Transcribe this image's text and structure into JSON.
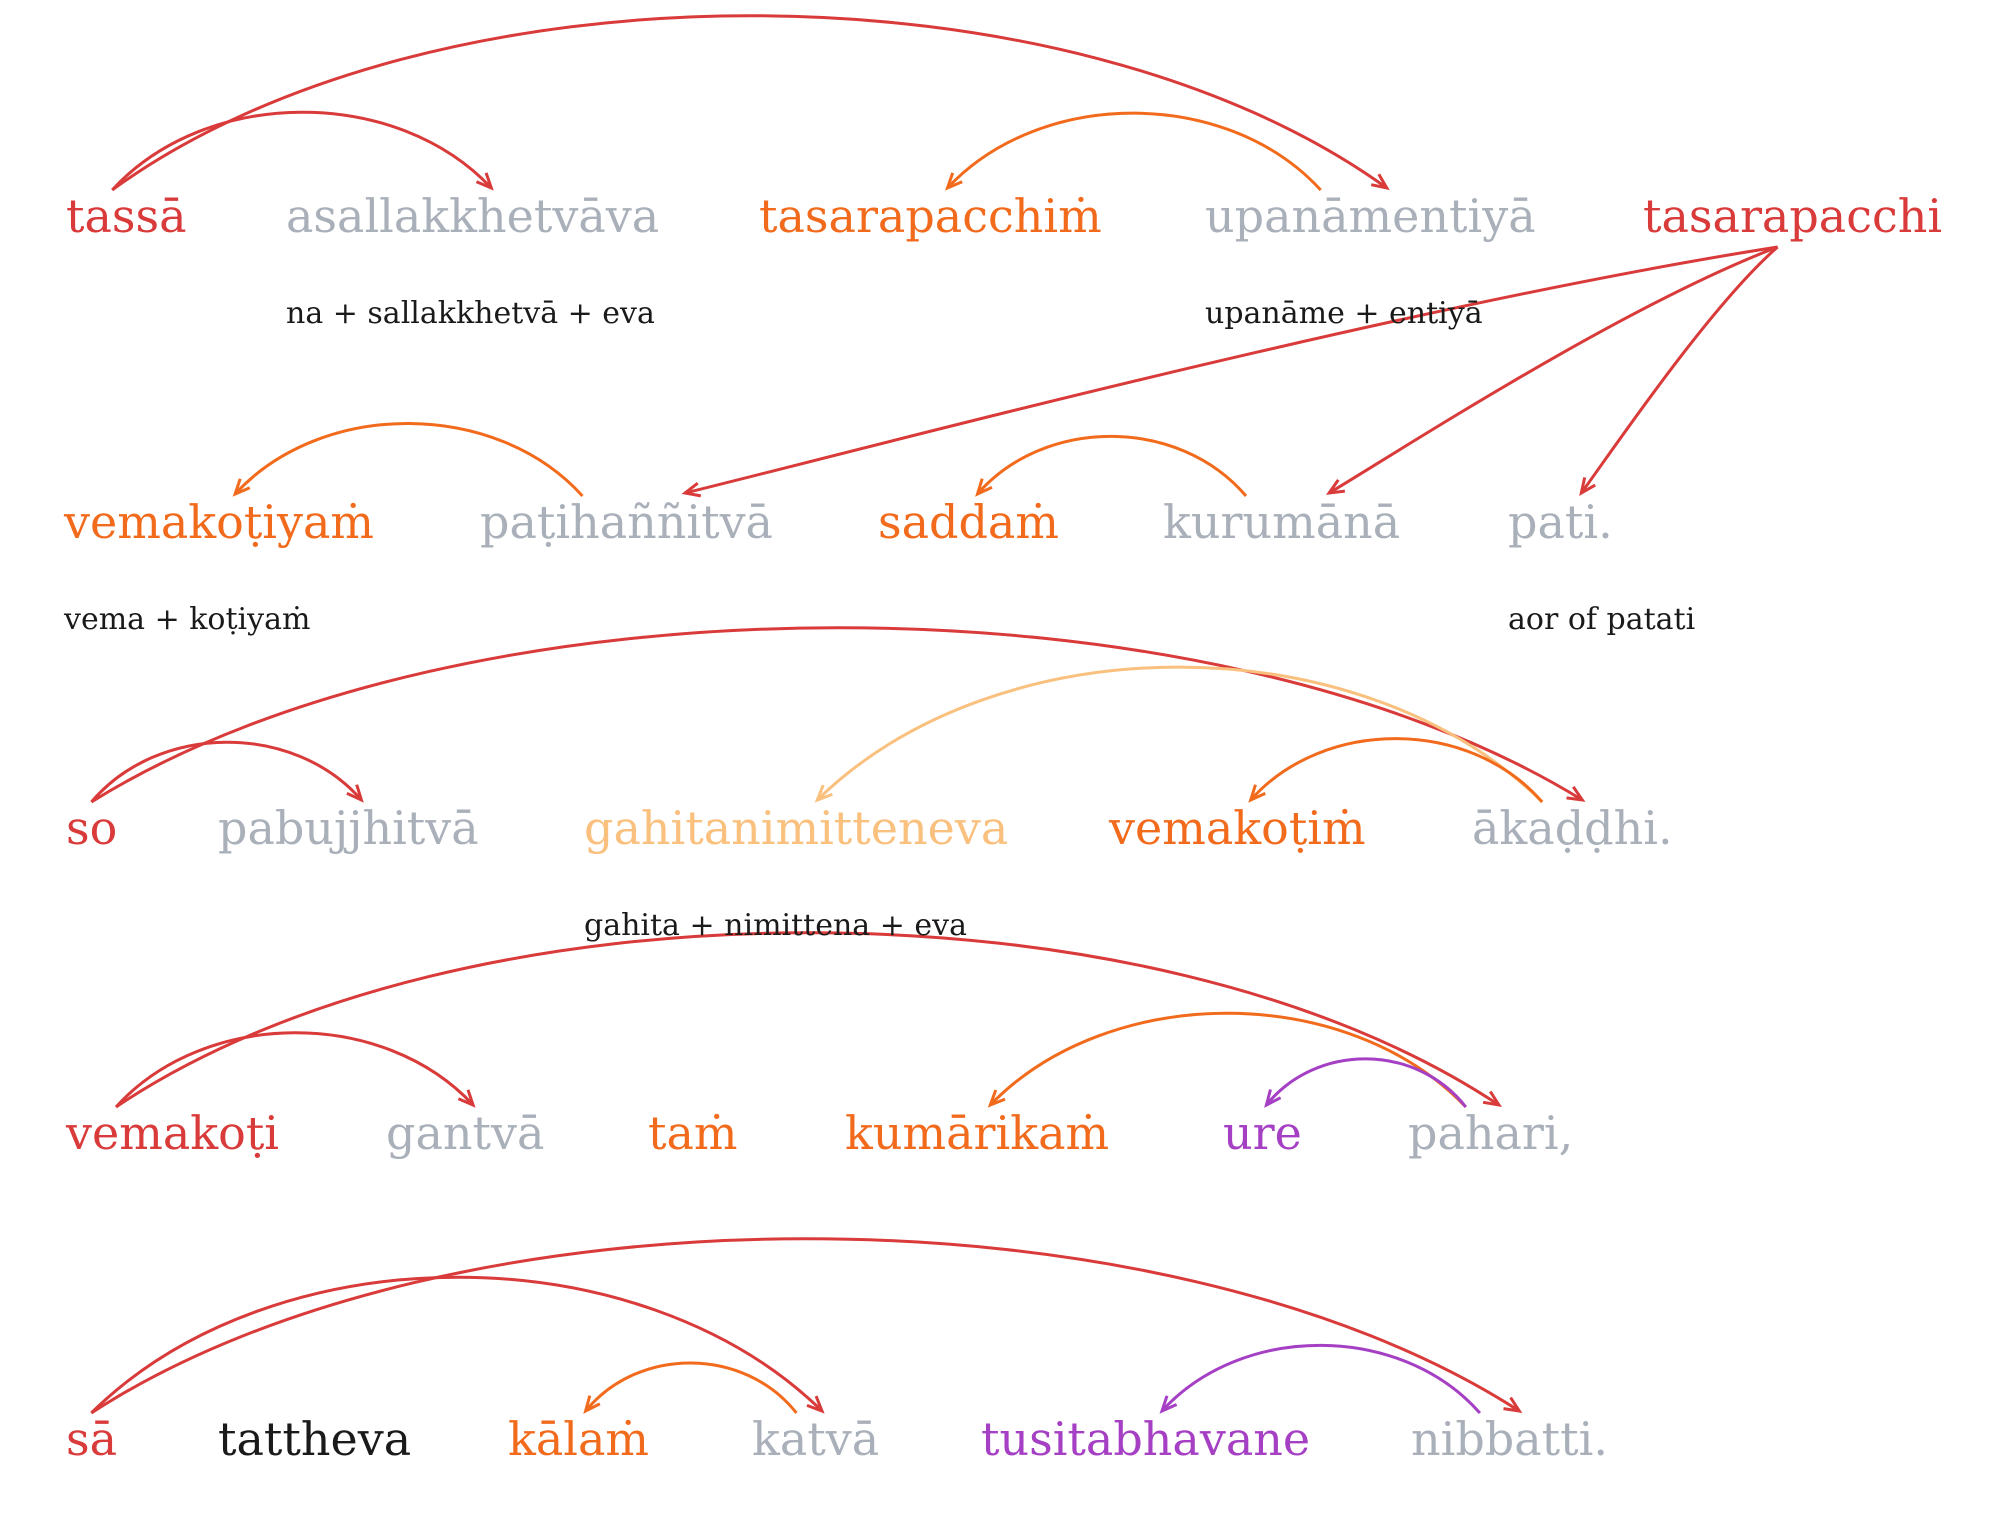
{
  "colors": {
    "red": "#d93a3a",
    "orange": "#f26b1d",
    "lightorange": "#f9c07e",
    "gray": "#a9b0b9",
    "purple": "#a540c4",
    "black": "#1a1a1a"
  },
  "lines": [
    {
      "words": [
        {
          "text": "tassā",
          "color": "red"
        },
        {
          "text": "asallakkhetvāva",
          "color": "gray",
          "gloss": "na + sallakkhetvā + eva"
        },
        {
          "text": "tasarapacchiṁ",
          "color": "orange"
        },
        {
          "text": "upanāmentiyā",
          "color": "gray",
          "gloss": "upanāme + entiyā"
        },
        {
          "text": "tasarapacchi",
          "color": "red"
        }
      ]
    },
    {
      "words": [
        {
          "text": "vemakoṭiyaṁ",
          "color": "orange",
          "gloss": "vema + koṭiyaṁ"
        },
        {
          "text": "paṭihaññitvā",
          "color": "gray"
        },
        {
          "text": "saddaṁ",
          "color": "orange"
        },
        {
          "text": "kurumānā",
          "color": "gray"
        },
        {
          "text": "pati.",
          "color": "gray",
          "gloss": "aor of patati"
        }
      ]
    },
    {
      "words": [
        {
          "text": "so",
          "color": "red"
        },
        {
          "text": "pabujjhitvā",
          "color": "gray"
        },
        {
          "text": "gahitanimitteneva",
          "color": "lightorange",
          "gloss": "gahita + nimittena + eva"
        },
        {
          "text": "vemakoṭiṁ",
          "color": "orange"
        },
        {
          "text": "ākaḍḍhi.",
          "color": "gray"
        }
      ]
    },
    {
      "words": [
        {
          "text": "vemakoṭi",
          "color": "red"
        },
        {
          "text": "gantvā",
          "color": "gray"
        },
        {
          "text": "taṁ",
          "color": "orange"
        },
        {
          "text": "kumārikaṁ",
          "color": "orange"
        },
        {
          "text": "ure",
          "color": "purple"
        },
        {
          "text": "pahari,",
          "color": "gray"
        }
      ]
    },
    {
      "words": [
        {
          "text": "sā",
          "color": "red"
        },
        {
          "text": "tattheva",
          "color": "black"
        },
        {
          "text": "kālaṁ",
          "color": "orange"
        },
        {
          "text": "katvā",
          "color": "gray"
        },
        {
          "text": "tusitabhavane",
          "color": "purple"
        },
        {
          "text": "nibbatti.",
          "color": "gray"
        }
      ]
    }
  ],
  "arcs": [
    {
      "from": [
        0,
        0
      ],
      "to": [
        0,
        1
      ],
      "color": "red"
    },
    {
      "from": [
        0,
        0
      ],
      "to": [
        0,
        3
      ],
      "color": "red"
    },
    {
      "from": [
        0,
        3
      ],
      "to": [
        0,
        2
      ],
      "color": "orange"
    },
    {
      "from": [
        0,
        4
      ],
      "to": [
        1,
        1
      ],
      "color": "red"
    },
    {
      "from": [
        0,
        4
      ],
      "to": [
        1,
        3
      ],
      "color": "red"
    },
    {
      "from": [
        0,
        4
      ],
      "to": [
        1,
        4
      ],
      "color": "red"
    },
    {
      "from": [
        1,
        1
      ],
      "to": [
        1,
        0
      ],
      "color": "orange"
    },
    {
      "from": [
        1,
        3
      ],
      "to": [
        1,
        2
      ],
      "color": "orange"
    },
    {
      "from": [
        2,
        0
      ],
      "to": [
        2,
        1
      ],
      "color": "red"
    },
    {
      "from": [
        2,
        0
      ],
      "to": [
        2,
        4
      ],
      "color": "red"
    },
    {
      "from": [
        2,
        4
      ],
      "to": [
        2,
        2
      ],
      "color": "lightorange"
    },
    {
      "from": [
        2,
        4
      ],
      "to": [
        2,
        3
      ],
      "color": "orange"
    },
    {
      "from": [
        3,
        0
      ],
      "to": [
        3,
        1
      ],
      "color": "red"
    },
    {
      "from": [
        3,
        0
      ],
      "to": [
        3,
        5
      ],
      "color": "red"
    },
    {
      "from": [
        3,
        5
      ],
      "to": [
        3,
        3
      ],
      "color": "orange"
    },
    {
      "from": [
        3,
        5
      ],
      "to": [
        3,
        4
      ],
      "color": "purple"
    },
    {
      "from": [
        4,
        0
      ],
      "to": [
        4,
        3
      ],
      "color": "red"
    },
    {
      "from": [
        4,
        0
      ],
      "to": [
        4,
        5
      ],
      "color": "red"
    },
    {
      "from": [
        4,
        3
      ],
      "to": [
        4,
        2
      ],
      "color": "orange"
    },
    {
      "from": [
        4,
        5
      ],
      "to": [
        4,
        4
      ],
      "color": "purple"
    }
  ]
}
